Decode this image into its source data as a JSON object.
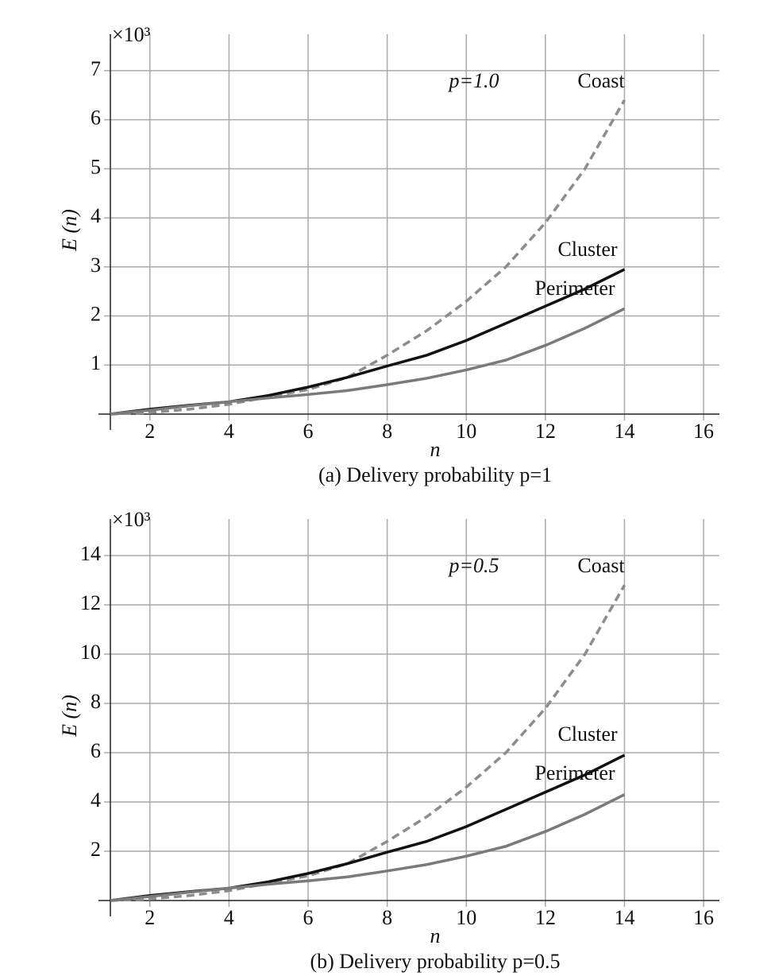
{
  "chart_data": [
    {
      "type": "line",
      "multiplier": "×10³",
      "annotation": "p=1.0",
      "x_label": "n",
      "y_label": "E (n)",
      "caption": "(a) Delivery probability p=1",
      "x": [
        1,
        2,
        3,
        4,
        5,
        6,
        7,
        8,
        9,
        10,
        11,
        12,
        13,
        14
      ],
      "series": [
        {
          "name": "Coast",
          "color": "#8c8c8c",
          "dashed": true,
          "values": [
            0,
            0.03,
            0.1,
            0.2,
            0.35,
            0.5,
            0.75,
            1.2,
            1.7,
            2.3,
            3.0,
            3.9,
            5.0,
            6.4
          ]
        },
        {
          "name": "Cluster",
          "color": "#111111",
          "dashed": false,
          "values": [
            0,
            0.1,
            0.18,
            0.25,
            0.38,
            0.55,
            0.75,
            0.98,
            1.2,
            1.5,
            1.85,
            2.2,
            2.55,
            2.95
          ]
        },
        {
          "name": "Perimeter",
          "color": "#7a7a7a",
          "dashed": false,
          "values": [
            0,
            0.08,
            0.17,
            0.25,
            0.33,
            0.4,
            0.48,
            0.6,
            0.73,
            0.9,
            1.1,
            1.4,
            1.75,
            2.15
          ]
        }
      ],
      "xlim": [
        1,
        16.3
      ],
      "xticks": [
        2,
        4,
        6,
        8,
        10,
        12,
        14,
        16
      ],
      "ylim": [
        0,
        7.5
      ],
      "yticks": [
        1,
        2,
        3,
        4,
        5,
        6,
        7
      ],
      "grid": true
    },
    {
      "type": "line",
      "multiplier": "×10³",
      "annotation": "p=0.5",
      "x_label": "n",
      "y_label": "E (n)",
      "caption": "(b) Delivery probability p=0.5",
      "x": [
        1,
        2,
        3,
        4,
        5,
        6,
        7,
        8,
        9,
        10,
        11,
        12,
        13,
        14
      ],
      "series": [
        {
          "name": "Coast",
          "color": "#8c8c8c",
          "dashed": true,
          "values": [
            0,
            0.06,
            0.2,
            0.4,
            0.7,
            1.0,
            1.5,
            2.4,
            3.4,
            4.6,
            6.0,
            7.8,
            10.0,
            12.8
          ]
        },
        {
          "name": "Cluster",
          "color": "#111111",
          "dashed": false,
          "values": [
            0,
            0.2,
            0.36,
            0.5,
            0.76,
            1.1,
            1.5,
            1.96,
            2.4,
            3.0,
            3.7,
            4.4,
            5.1,
            5.9
          ]
        },
        {
          "name": "Perimeter",
          "color": "#7a7a7a",
          "dashed": false,
          "values": [
            0,
            0.16,
            0.34,
            0.5,
            0.66,
            0.8,
            0.96,
            1.2,
            1.46,
            1.8,
            2.2,
            2.8,
            3.5,
            4.3
          ]
        }
      ],
      "xlim": [
        1,
        16.3
      ],
      "xticks": [
        2,
        4,
        6,
        8,
        10,
        12,
        14,
        16
      ],
      "ylim": [
        0,
        15
      ],
      "yticks": [
        2,
        4,
        6,
        8,
        10,
        12,
        14
      ],
      "grid": true
    }
  ]
}
